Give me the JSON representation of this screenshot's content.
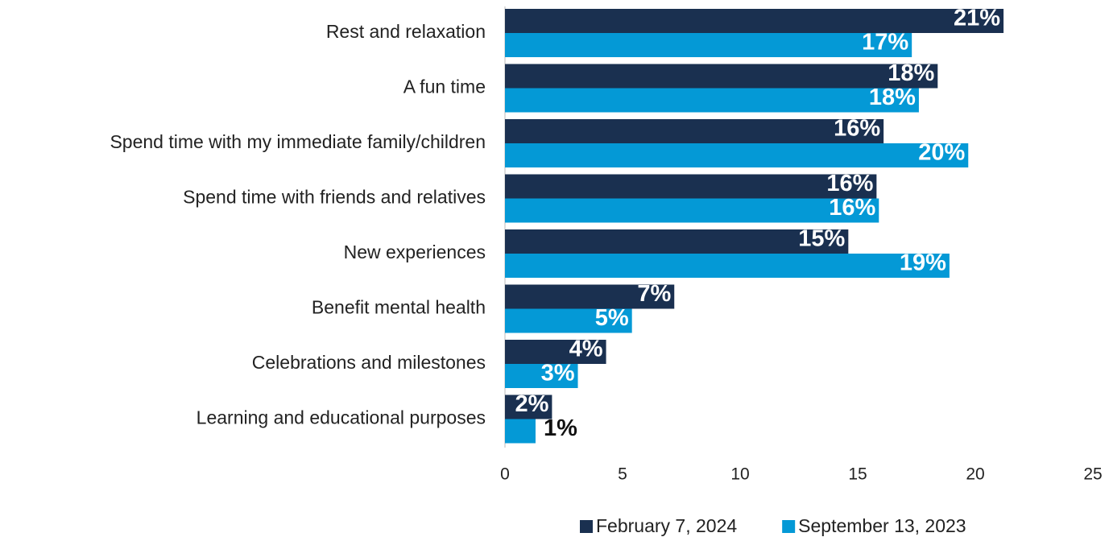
{
  "chart_data": {
    "type": "hbar",
    "categories": [
      "Rest and relaxation",
      "A fun time",
      "Spend time with my immediate family/children",
      "Spend time with friends and relatives",
      "New experiences",
      "Benefit mental health",
      "Celebrations and milestones",
      "Learning and educational purposes"
    ],
    "series": [
      {
        "name": "February 7, 2024",
        "color": "#1a3050",
        "values": [
          21.2,
          18.4,
          16.1,
          15.8,
          14.6,
          7.2,
          4.3,
          2.0
        ],
        "value_labels": [
          "21%",
          "18%",
          "16%",
          "16%",
          "15%",
          "7%",
          "4%",
          "2%"
        ]
      },
      {
        "name": "September 13, 2023",
        "color": "#0499d6",
        "values": [
          17.3,
          17.6,
          19.7,
          15.9,
          18.9,
          5.4,
          3.1,
          1.3
        ],
        "value_labels": [
          "17%",
          "18%",
          "20%",
          "16%",
          "19%",
          "5%",
          "3%",
          "1%"
        ]
      }
    ],
    "xlim": [
      0,
      25
    ],
    "xticks": [
      0,
      5,
      10,
      15,
      20,
      25
    ],
    "legend": "bottom"
  }
}
